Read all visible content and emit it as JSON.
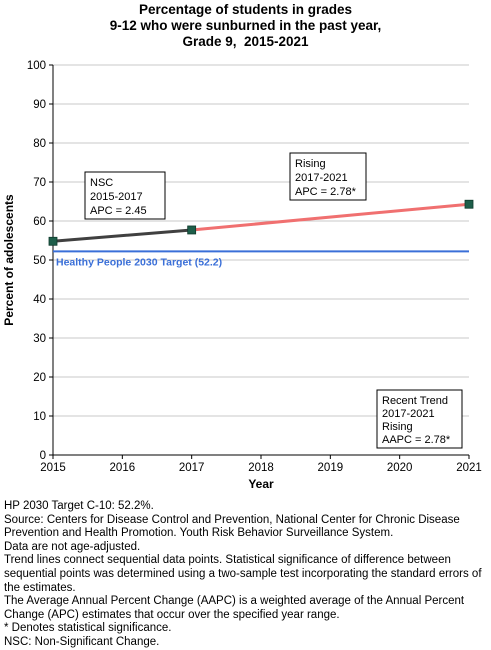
{
  "title_lines": [
    "Percentage of students in grades",
    "9-12 who were sunburned in the past year,",
    "Grade 9,  2015-2021"
  ],
  "chart_data": {
    "type": "line",
    "xlabel": "Year",
    "ylabel": "Percent of adolescents",
    "x_ticks": [
      2015,
      2016,
      2017,
      2018,
      2019,
      2020,
      2021
    ],
    "y_ticks": [
      0,
      10,
      20,
      30,
      40,
      50,
      60,
      70,
      80,
      90,
      100
    ],
    "xlim": [
      2015,
      2021
    ],
    "ylim": [
      0,
      100
    ],
    "grid": "horizontal",
    "points": [
      {
        "x": 2015,
        "y": 54.8
      },
      {
        "x": 2017,
        "y": 57.7
      },
      {
        "x": 2021,
        "y": 64.3
      }
    ],
    "segments": [
      {
        "x": [
          2015,
          2017
        ],
        "y": [
          54.8,
          57.7
        ],
        "color": "#404040"
      },
      {
        "x": [
          2017,
          2021
        ],
        "y": [
          57.7,
          64.3
        ],
        "color": "#f07070"
      }
    ],
    "target": {
      "value": 52.2,
      "label": "Healthy People 2030 Target (52.2)",
      "color": "#3a6fd8"
    },
    "annotations": [
      {
        "lines": [
          "NSC",
          "2015-2017",
          "APC =  2.45"
        ]
      },
      {
        "lines": [
          "Rising",
          "2017-2021",
          "APC =  2.78*"
        ]
      },
      {
        "lines": [
          "Recent Trend",
          "2017-2021",
          "Rising",
          "AAPC =  2.78*"
        ]
      }
    ],
    "colors": {
      "marker": "#1e5e4a",
      "axis": "#000000",
      "grid": "#c8c8c8",
      "plot_bg": "#ffffff"
    }
  },
  "notes": [
    "HP 2030 Target C-10: 52.2%.",
    "Source: Centers for Disease Control and Prevention, National Center for Chronic Disease Prevention and Health Promotion. Youth Risk Behavior Surveillance System.",
    "Data are not age-adjusted.",
    "Trend lines connect sequential data points. Statistical significance of difference between sequential points was determined using a two-sample test incorporating the standard errors of the estimates.",
    "The Average Annual Percent Change (AAPC) is a weighted average of the Annual Percent Change (APC) estimates that occur over the specified year range.",
    "* Denotes statistical significance.",
    "NSC: Non-Significant Change."
  ]
}
